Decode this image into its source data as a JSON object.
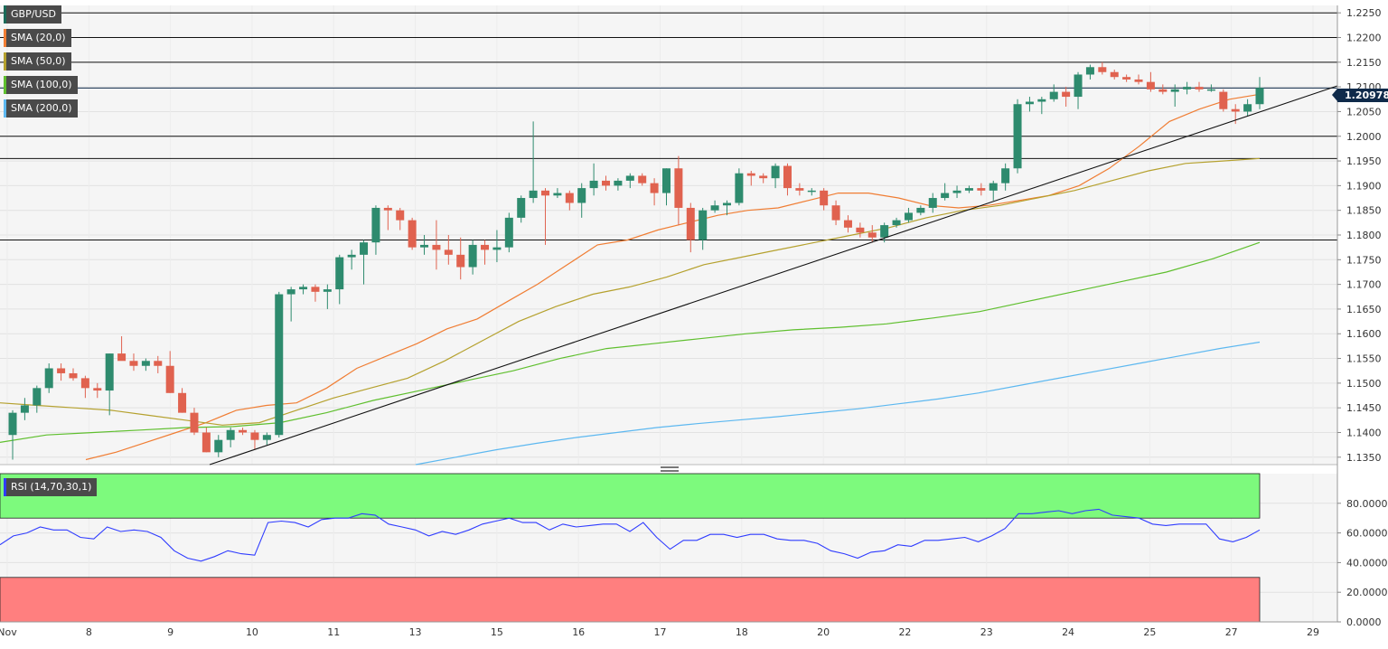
{
  "symbol": "GBP/USD",
  "legend": [
    {
      "label": "GBP/USD",
      "color": "#1b6b59"
    },
    {
      "label": "SMA (20,0)",
      "color": "#f07d33"
    },
    {
      "label": "SMA (50,0)",
      "color": "#b5a12e"
    },
    {
      "label": "SMA (100,0)",
      "color": "#5fbf2e"
    },
    {
      "label": "SMA (200,0)",
      "color": "#5db8f0"
    }
  ],
  "current_price": "1.20978",
  "rsi_label": "RSI (14,70,30,1)",
  "colors": {
    "up": "#2e8b6e",
    "down": "#e0624f",
    "sma20": "#f07d33",
    "sma50": "#b5a12e",
    "sma100": "#5fbf2e",
    "sma200": "#5db8f0",
    "rsi": "#2f3cff",
    "overbought": "#7dfa7d",
    "oversold": "#ff7f7f"
  },
  "chart_data": [
    {
      "type": "candlestick",
      "title": "GBP/USD",
      "ylim": [
        1.1335,
        1.2265
      ],
      "y_ticks": [
        "1.2250",
        "1.2200",
        "1.2150",
        "1.2100",
        "1.2050",
        "1.2000",
        "1.1950",
        "1.1900",
        "1.1850",
        "1.1800",
        "1.1750",
        "1.1700",
        "1.1650",
        "1.1600",
        "1.1550",
        "1.1500",
        "1.1450",
        "1.1400",
        "1.1350"
      ],
      "x_tick_labels": [
        "Nov",
        "8",
        "9",
        "10",
        "11",
        "13",
        "15",
        "16",
        "17",
        "18",
        "20",
        "22",
        "23",
        "24",
        "25",
        "27",
        "29"
      ],
      "horizontal_levels": [
        1.225,
        1.22,
        1.215,
        1.2,
        1.1955,
        1.179
      ],
      "current_price_level": 1.20978,
      "trendline": [
        [
          1.1335,
          1.2102
        ]
      ],
      "candles": [
        [
          1.1395,
          1.1445,
          1.1345,
          1.144
        ],
        [
          1.144,
          1.147,
          1.1425,
          1.1455
        ],
        [
          1.1455,
          1.1495,
          1.144,
          1.149
        ],
        [
          1.149,
          1.154,
          1.148,
          1.153
        ],
        [
          1.153,
          1.154,
          1.1505,
          1.152
        ],
        [
          1.152,
          1.153,
          1.1505,
          1.151
        ],
        [
          1.151,
          1.1515,
          1.147,
          1.149
        ],
        [
          1.149,
          1.15,
          1.147,
          1.1485
        ],
        [
          1.1485,
          1.156,
          1.1435,
          1.156
        ],
        [
          1.156,
          1.1595,
          1.155,
          1.1545
        ],
        [
          1.1545,
          1.156,
          1.1525,
          1.1535
        ],
        [
          1.1535,
          1.155,
          1.1525,
          1.1545
        ],
        [
          1.1545,
          1.1555,
          1.152,
          1.1535
        ],
        [
          1.1535,
          1.1565,
          1.148,
          1.148
        ],
        [
          1.148,
          1.149,
          1.144,
          1.144
        ],
        [
          1.144,
          1.145,
          1.1395,
          1.14
        ],
        [
          1.14,
          1.141,
          1.136,
          1.136
        ],
        [
          1.136,
          1.1395,
          1.135,
          1.1385
        ],
        [
          1.1385,
          1.141,
          1.137,
          1.1405
        ],
        [
          1.1405,
          1.141,
          1.1395,
          1.14
        ],
        [
          1.14,
          1.1405,
          1.1365,
          1.1385
        ],
        [
          1.1385,
          1.14,
          1.1375,
          1.1395
        ],
        [
          1.1395,
          1.1685,
          1.139,
          1.168
        ],
        [
          1.168,
          1.1695,
          1.1625,
          1.169
        ],
        [
          1.169,
          1.17,
          1.168,
          1.1695
        ],
        [
          1.1695,
          1.17,
          1.1665,
          1.1685
        ],
        [
          1.1685,
          1.17,
          1.165,
          1.169
        ],
        [
          1.169,
          1.176,
          1.166,
          1.1755
        ],
        [
          1.1755,
          1.177,
          1.173,
          1.176
        ],
        [
          1.176,
          1.179,
          1.17,
          1.1785
        ],
        [
          1.1785,
          1.186,
          1.176,
          1.1855
        ],
        [
          1.1855,
          1.186,
          1.181,
          1.185
        ],
        [
          1.185,
          1.1855,
          1.181,
          1.183
        ],
        [
          1.183,
          1.1835,
          1.177,
          1.1775
        ],
        [
          1.1775,
          1.18,
          1.176,
          1.178
        ],
        [
          1.178,
          1.183,
          1.173,
          1.177
        ],
        [
          1.177,
          1.18,
          1.174,
          1.176
        ],
        [
          1.176,
          1.1795,
          1.171,
          1.1735
        ],
        [
          1.1735,
          1.179,
          1.172,
          1.178
        ],
        [
          1.178,
          1.179,
          1.174,
          1.177
        ],
        [
          1.177,
          1.181,
          1.1745,
          1.1775
        ],
        [
          1.1775,
          1.1845,
          1.1765,
          1.1835
        ],
        [
          1.1835,
          1.188,
          1.1825,
          1.1875
        ],
        [
          1.1875,
          1.203,
          1.1865,
          1.189
        ],
        [
          1.189,
          1.1895,
          1.178,
          1.188
        ],
        [
          1.188,
          1.1895,
          1.1875,
          1.1885
        ],
        [
          1.1885,
          1.189,
          1.185,
          1.1865
        ],
        [
          1.1865,
          1.1905,
          1.1835,
          1.1895
        ],
        [
          1.1895,
          1.1945,
          1.188,
          1.191
        ],
        [
          1.191,
          1.192,
          1.189,
          1.19
        ],
        [
          1.19,
          1.1915,
          1.189,
          1.191
        ],
        [
          1.191,
          1.1925,
          1.1895,
          1.192
        ],
        [
          1.192,
          1.1925,
          1.19,
          1.1905
        ],
        [
          1.1905,
          1.1915,
          1.186,
          1.1885
        ],
        [
          1.1885,
          1.1935,
          1.186,
          1.1935
        ],
        [
          1.1935,
          1.196,
          1.182,
          1.1855
        ],
        [
          1.1855,
          1.1865,
          1.1765,
          1.179
        ],
        [
          1.179,
          1.1855,
          1.177,
          1.185
        ],
        [
          1.185,
          1.187,
          1.1845,
          1.186
        ],
        [
          1.186,
          1.187,
          1.184,
          1.1865
        ],
        [
          1.1865,
          1.1935,
          1.186,
          1.1925
        ],
        [
          1.1925,
          1.193,
          1.19,
          1.192
        ],
        [
          1.192,
          1.1925,
          1.1905,
          1.1915
        ],
        [
          1.1915,
          1.1945,
          1.1895,
          1.194
        ],
        [
          1.194,
          1.1945,
          1.188,
          1.1895
        ],
        [
          1.1895,
          1.1905,
          1.188,
          1.189
        ],
        [
          1.189,
          1.1895,
          1.188,
          1.189
        ],
        [
          1.189,
          1.1895,
          1.185,
          1.186
        ],
        [
          1.186,
          1.187,
          1.182,
          1.183
        ],
        [
          1.183,
          1.184,
          1.1805,
          1.1815
        ],
        [
          1.1815,
          1.1825,
          1.1795,
          1.1805
        ],
        [
          1.1805,
          1.182,
          1.1785,
          1.1795
        ],
        [
          1.1795,
          1.1825,
          1.1785,
          1.182
        ],
        [
          1.182,
          1.1835,
          1.1815,
          1.183
        ],
        [
          1.183,
          1.1855,
          1.1825,
          1.1845
        ],
        [
          1.1845,
          1.186,
          1.184,
          1.1855
        ],
        [
          1.1855,
          1.1885,
          1.1845,
          1.1875
        ],
        [
          1.1875,
          1.1905,
          1.187,
          1.1885
        ],
        [
          1.1885,
          1.19,
          1.1875,
          1.189
        ],
        [
          1.189,
          1.19,
          1.1885,
          1.1895
        ],
        [
          1.1895,
          1.1905,
          1.188,
          1.189
        ],
        [
          1.189,
          1.191,
          1.187,
          1.1905
        ],
        [
          1.1905,
          1.1945,
          1.189,
          1.1935
        ],
        [
          1.1935,
          1.2075,
          1.1925,
          1.2065
        ],
        [
          1.2065,
          1.208,
          1.205,
          1.207
        ],
        [
          1.207,
          1.208,
          1.2045,
          1.2075
        ],
        [
          1.2075,
          1.2105,
          1.207,
          1.209
        ],
        [
          1.209,
          1.21,
          1.206,
          1.208
        ],
        [
          1.208,
          1.213,
          1.2055,
          1.2125
        ],
        [
          1.2125,
          1.2145,
          1.2115,
          1.214
        ],
        [
          1.214,
          1.215,
          1.2125,
          1.213
        ],
        [
          1.213,
          1.2135,
          1.2115,
          1.212
        ],
        [
          1.212,
          1.2125,
          1.211,
          1.2115
        ],
        [
          1.2115,
          1.2125,
          1.2105,
          1.211
        ],
        [
          1.211,
          1.213,
          1.209,
          1.2095
        ],
        [
          1.2095,
          1.2105,
          1.2085,
          1.209
        ],
        [
          1.209,
          1.2105,
          1.206,
          1.2095
        ],
        [
          1.2095,
          1.211,
          1.2085,
          1.21
        ],
        [
          1.21,
          1.211,
          1.209,
          1.2095
        ],
        [
          1.2095,
          1.2105,
          1.209,
          1.2095
        ],
        [
          1.209,
          1.2095,
          1.205,
          1.2055
        ],
        [
          1.2055,
          1.2065,
          1.2025,
          1.205
        ],
        [
          1.205,
          1.2075,
          1.204,
          1.2065
        ],
        [
          1.2065,
          1.212,
          1.2055,
          1.2098
        ]
      ],
      "series": [
        {
          "name": "SMA (20,0)",
          "values": [
            1.1345,
            1.136,
            1.138,
            1.14,
            1.142,
            1.1445,
            1.1455,
            1.146,
            1.149,
            1.153,
            1.1555,
            1.158,
            1.161,
            1.163,
            1.1665,
            1.17,
            1.174,
            1.178,
            1.179,
            1.181,
            1.1825,
            1.184,
            1.185,
            1.1855,
            1.187,
            1.1885,
            1.1885,
            1.1875,
            1.186,
            1.1855,
            1.186,
            1.187,
            1.188,
            1.19,
            1.1935,
            1.198,
            1.203,
            1.2055,
            1.2075,
            1.2085
          ]
        },
        {
          "name": "SMA (50,0)",
          "values": [
            1.146,
            1.1455,
            1.145,
            1.1445,
            1.1435,
            1.1425,
            1.1415,
            1.142,
            1.1445,
            1.147,
            1.149,
            1.151,
            1.1545,
            1.1585,
            1.1625,
            1.1655,
            1.168,
            1.1695,
            1.1715,
            1.174,
            1.1755,
            1.177,
            1.1785,
            1.18,
            1.1815,
            1.1835,
            1.185,
            1.186,
            1.1875,
            1.189,
            1.191,
            1.193,
            1.1945,
            1.195,
            1.1955
          ]
        },
        {
          "name": "SMA (100,0)",
          "values": [
            1.138,
            1.1395,
            1.14,
            1.1405,
            1.141,
            1.1412,
            1.142,
            1.144,
            1.1465,
            1.1485,
            1.1505,
            1.1525,
            1.155,
            1.157,
            1.158,
            1.159,
            1.16,
            1.1608,
            1.1613,
            1.162,
            1.1632,
            1.1645,
            1.1665,
            1.1685,
            1.1705,
            1.1725,
            1.1752,
            1.1785
          ]
        },
        {
          "name": "SMA (200,0)",
          "values": [
            1.1335,
            1.135,
            1.1365,
            1.1378,
            1.139,
            1.14,
            1.141,
            1.1418,
            1.1425,
            1.1432,
            1.144,
            1.1448,
            1.1458,
            1.1468,
            1.148,
            1.1495,
            1.151,
            1.1525,
            1.154,
            1.1555,
            1.157,
            1.1583
          ]
        }
      ]
    },
    {
      "type": "line",
      "title": "RSI (14,70,30,1)",
      "ylim": [
        0,
        100
      ],
      "y_ticks": [
        "80.0000",
        "60.0000",
        "40.0000",
        "20.0000",
        "0.0000"
      ],
      "overbought": 70,
      "oversold": 30,
      "series": [
        {
          "name": "RSI (14,70,30,1)",
          "values": [
            52,
            58,
            60,
            64,
            62,
            62,
            57,
            56,
            64,
            61,
            62,
            61,
            57,
            48,
            43,
            41,
            44,
            48,
            46,
            45,
            67,
            68,
            67,
            64,
            69,
            70,
            70,
            73,
            72,
            66,
            64,
            62,
            58,
            61,
            59,
            62,
            66,
            68,
            70,
            67,
            67,
            62,
            66,
            64,
            65,
            66,
            66,
            61,
            67,
            57,
            49,
            55,
            55,
            59,
            59,
            57,
            59,
            59,
            56,
            55,
            55,
            53,
            48,
            46,
            43,
            47,
            48,
            52,
            51,
            55,
            55,
            56,
            57,
            54,
            58,
            63,
            73,
            73,
            74,
            75,
            73,
            75,
            76,
            72,
            71,
            70,
            66,
            65,
            66,
            66,
            66,
            56,
            54,
            57,
            62
          ]
        }
      ]
    }
  ]
}
